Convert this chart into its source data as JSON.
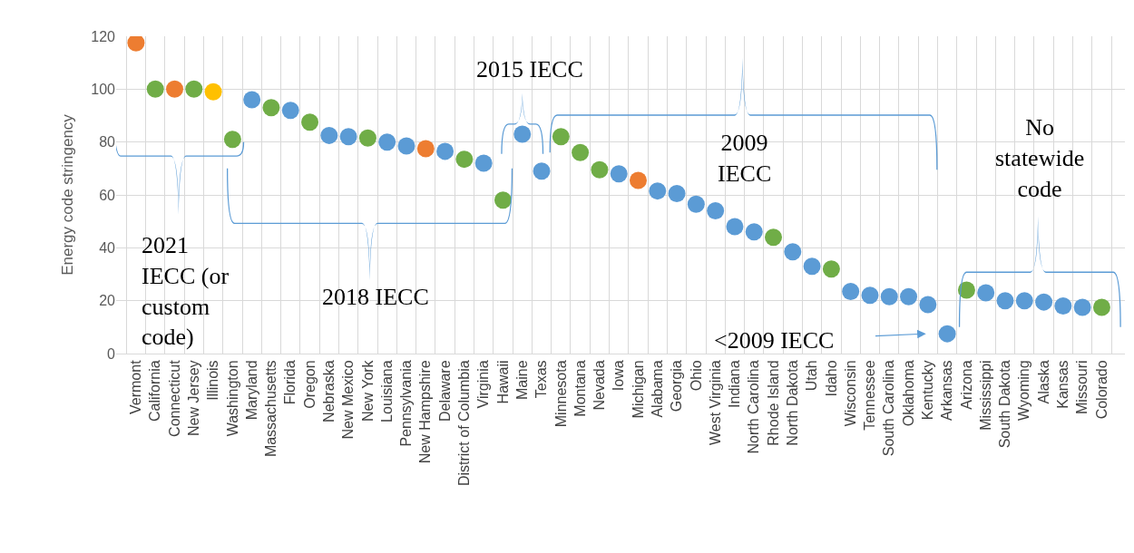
{
  "chart_data": {
    "type": "scatter",
    "ylabel": "Energy code stringency",
    "categories": [
      "Vermont",
      "California",
      "Connecticut",
      "New Jersey",
      "Illinois",
      "Washington",
      "Maryland",
      "Massachusetts",
      "Florida",
      "Oregon",
      "Nebraska",
      "New Mexico",
      "New York",
      "Louisiana",
      "Pennsylvania",
      "New Hampshire",
      "Delaware",
      "District of Columbia",
      "Virginia",
      "Hawaii",
      "Maine",
      "Texas",
      "Minnesota",
      "Montana",
      "Nevada",
      "Iowa",
      "Michigan",
      "Alabama",
      "Georgia",
      "Ohio",
      "West Virginia",
      "Indiana",
      "North Carolina",
      "Rhode Island",
      "North Dakota",
      "Utah",
      "Idaho",
      "Wisconsin",
      "Tennessee",
      "South Carolina",
      "Oklahoma",
      "Kentucky",
      "Arkansas",
      "Arizona",
      "Mississippi",
      "South Dakota",
      "Wyoming",
      "Alaska",
      "Kansas",
      "Missouri",
      "Colorado"
    ],
    "values": [
      117.5,
      100,
      100,
      100,
      99,
      81,
      96,
      93,
      92,
      87.5,
      82.5,
      82,
      81.5,
      80,
      78.5,
      77.5,
      76.5,
      73.5,
      72,
      58,
      83,
      69,
      82,
      76,
      69.5,
      68,
      65.5,
      61.5,
      60.5,
      56.5,
      54,
      48,
      46,
      44,
      38.5,
      33,
      32,
      23.5,
      22,
      21.5,
      21.5,
      18.5,
      7.5,
      24,
      23,
      20,
      20,
      19.5,
      18,
      17.5,
      17.5
    ],
    "colors": [
      "#ed7d31",
      "#70ad47",
      "#ed7d31",
      "#70ad47",
      "#ffc000",
      "#70ad47",
      "#5b9bd5",
      "#70ad47",
      "#5b9bd5",
      "#70ad47",
      "#5b9bd5",
      "#5b9bd5",
      "#70ad47",
      "#5b9bd5",
      "#5b9bd5",
      "#ed7d31",
      "#5b9bd5",
      "#70ad47",
      "#5b9bd5",
      "#70ad47",
      "#5b9bd5",
      "#5b9bd5",
      "#70ad47",
      "#70ad47",
      "#70ad47",
      "#5b9bd5",
      "#ed7d31",
      "#5b9bd5",
      "#5b9bd5",
      "#5b9bd5",
      "#5b9bd5",
      "#5b9bd5",
      "#5b9bd5",
      "#70ad47",
      "#5b9bd5",
      "#5b9bd5",
      "#70ad47",
      "#5b9bd5",
      "#5b9bd5",
      "#5b9bd5",
      "#5b9bd5",
      "#5b9bd5",
      "#5b9bd5",
      "#70ad47",
      "#5b9bd5",
      "#5b9bd5",
      "#5b9bd5",
      "#5b9bd5",
      "#5b9bd5",
      "#5b9bd5",
      "#70ad47"
    ],
    "ylim": [
      0,
      120
    ],
    "yticks": [
      0,
      20,
      40,
      60,
      80,
      100,
      120
    ],
    "grid": true,
    "annotations": [
      "2021 IECC (or custom code)",
      "2018 IECC",
      "2015 IECC",
      "2009 IECC",
      "No statewide code",
      "<2009 IECC"
    ]
  }
}
